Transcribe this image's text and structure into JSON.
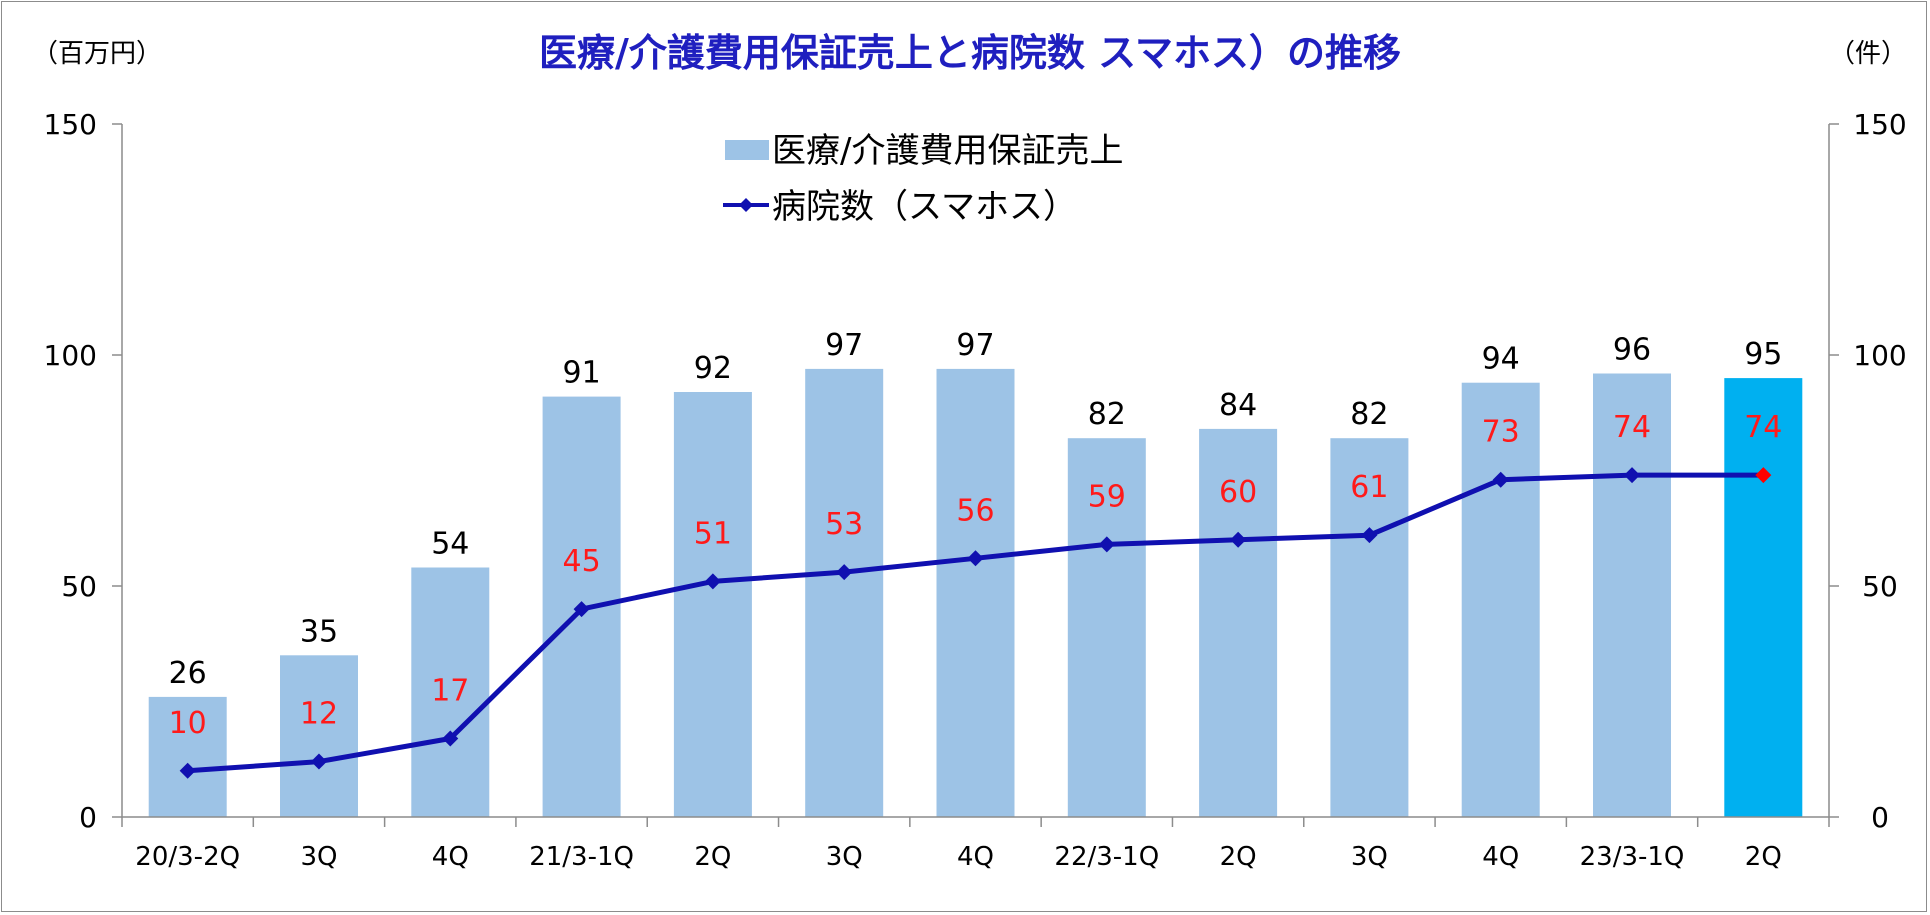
{
  "chart_data": {
    "type": "bar",
    "title": "医療/介護費用保証売上と病院数 スマホス）の推移",
    "left_unit": "（百万円）",
    "right_unit": "（件）",
    "categories": [
      "20/3-2Q",
      "3Q",
      "4Q",
      "21/3-1Q",
      "2Q",
      "3Q",
      "4Q",
      "22/3-1Q",
      "2Q",
      "3Q",
      "4Q",
      "23/3-1Q",
      "2Q"
    ],
    "series": [
      {
        "name": "医療/介護費用保証売上",
        "type": "bar",
        "axis": "left",
        "color": "#9dc3e6",
        "highlight_color": "#00b0f0",
        "highlight_index": 12,
        "values": [
          26,
          35,
          54,
          91,
          92,
          97,
          97,
          82,
          84,
          82,
          94,
          96,
          95
        ]
      },
      {
        "name": "病院数（スマホス）",
        "type": "line",
        "axis": "right",
        "color": "#1010b0",
        "marker_color": "#1010b0",
        "label_color": "#ff1a1a",
        "last_marker_color": "#ff0000",
        "values": [
          10,
          12,
          17,
          45,
          51,
          53,
          56,
          59,
          60,
          61,
          73,
          74,
          74
        ]
      }
    ],
    "ylim_left": [
      0,
      150
    ],
    "ylim_right": [
      0,
      150
    ],
    "yticks_left": [
      "0",
      "50",
      "100",
      "150"
    ],
    "yticks_right": [
      "0",
      "50",
      "100",
      "150"
    ],
    "grid": false,
    "legend_position": "top-center"
  }
}
